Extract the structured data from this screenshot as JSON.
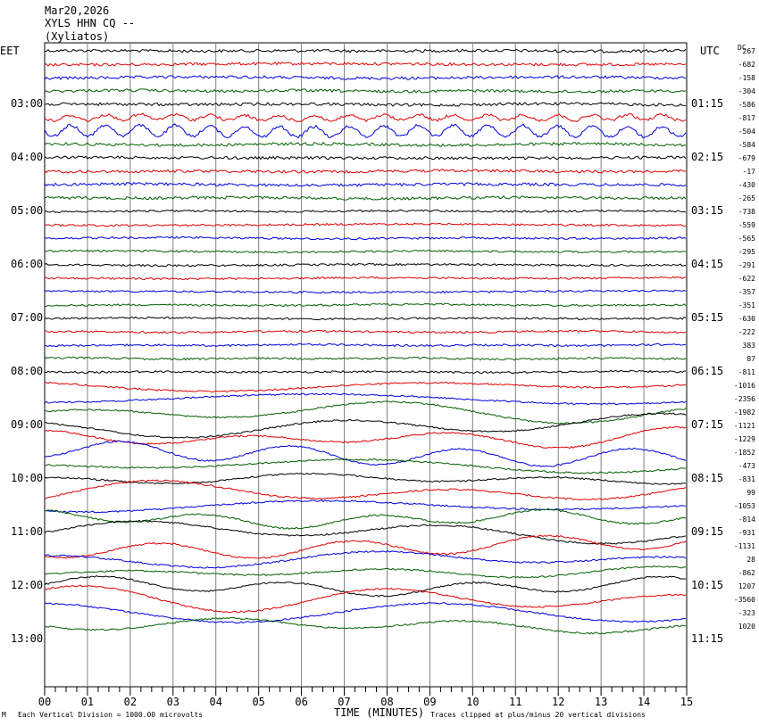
{
  "header": {
    "date": "Mar20,2026",
    "station": "XYLS HHN CQ --",
    "location": "(Xyliatos)"
  },
  "left_zone": "EET",
  "right_zone": "UTC",
  "dc_header": "DC",
  "footer": {
    "xlabel": "TIME (MINUTES)",
    "scale_note": "Each Vertical Division = 1000.00 microvolts",
    "clip_note": "Traces clipped at plus/minus 20 vertical divisions",
    "corner_mark": "M"
  },
  "chart_data": {
    "type": "line",
    "title": "XYLS HHN CQ --",
    "xlabel": "TIME (MINUTES)",
    "ylabel": "",
    "x_ticks": [
      "00",
      "01",
      "02",
      "03",
      "04",
      "05",
      "06",
      "07",
      "08",
      "09",
      "10",
      "11",
      "12",
      "13",
      "14",
      "15"
    ],
    "xlim": [
      0,
      15
    ],
    "grid": true,
    "left_hour_labels": [
      "03:00",
      "04:00",
      "05:00",
      "06:00",
      "07:00",
      "08:00",
      "09:00",
      "10:00",
      "11:00",
      "12:00",
      "13:00"
    ],
    "right_hour_labels": [
      "01:15",
      "02:15",
      "03:15",
      "04:15",
      "05:15",
      "06:15",
      "07:15",
      "08:15",
      "09:15",
      "10:15",
      "11:15"
    ],
    "trace_colors": [
      "#000000",
      "#e00000",
      "#0000e0",
      "#006000"
    ],
    "dc_offsets": [
      "267",
      "-682",
      "-158",
      "-304",
      "-586",
      "-817",
      "-504",
      "-584",
      "-679",
      "-17",
      "-430",
      "-265",
      "-738",
      "-559",
      "-565",
      "-295",
      "-291",
      "-622",
      "-357",
      "-351",
      "-630",
      "-222",
      "383",
      "87",
      "-811",
      "-1016",
      "-2356",
      "-1982",
      "-1121",
      "-1229",
      "-1852",
      "-473",
      "-831",
      "99",
      "-1053",
      "-814",
      "-931",
      "-1131",
      "28",
      "-862",
      "1207",
      "-3560",
      "-323",
      "1020"
    ]
  }
}
